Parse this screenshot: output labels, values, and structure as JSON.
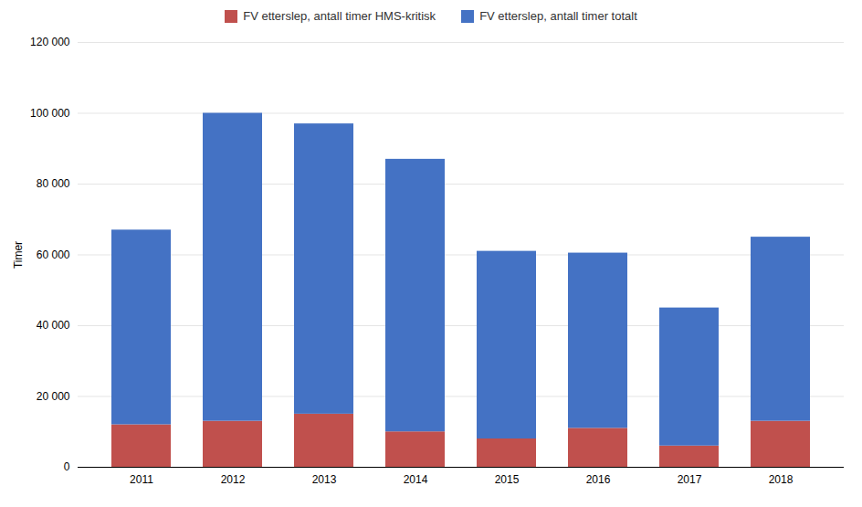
{
  "chart_data": {
    "type": "bar",
    "stacked": true,
    "categories": [
      "2011",
      "2012",
      "2013",
      "2014",
      "2015",
      "2016",
      "2017",
      "2018"
    ],
    "series": [
      {
        "name": "FV etterslep, antall timer HMS-kritisk",
        "color": "#c0504d",
        "values": [
          12000,
          13000,
          15000,
          10000,
          8000,
          11000,
          6000,
          13000
        ]
      },
      {
        "name": "FV etterslep, antall timer totalt",
        "color": "#4472c4",
        "values": [
          55000,
          87000,
          82000,
          77000,
          53000,
          49500,
          39000,
          52000
        ]
      }
    ],
    "ylabel": "Timer",
    "ylim": [
      0,
      120000
    ],
    "yticks": [
      0,
      {
        "value": 20000,
        "label": "20 000"
      },
      {
        "value": 40000,
        "label": "40 000"
      },
      {
        "value": 60000,
        "label": "60 000"
      },
      {
        "value": 80000,
        "label": "80 000"
      },
      {
        "value": 100000,
        "label": "100 000"
      },
      {
        "value": 120000,
        "label": "120 000"
      }
    ],
    "grid": true,
    "legend": "top"
  }
}
